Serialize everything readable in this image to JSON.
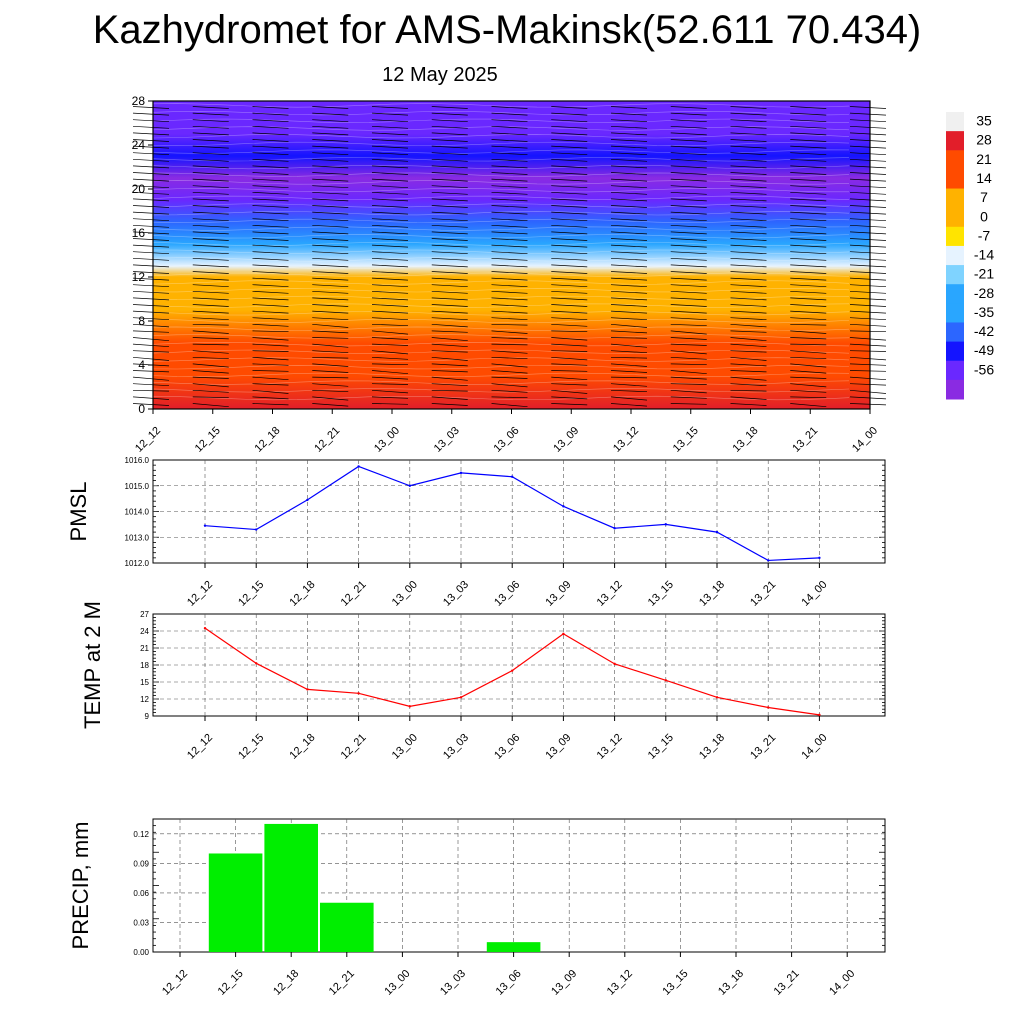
{
  "title": "Kazhydromet for AMS-Makinsk(52.611 70.434)",
  "subtitle": "12 May 2025",
  "time_labels": [
    "12_12",
    "12_15",
    "12_18",
    "12_21",
    "13_00",
    "13_03",
    "13_06",
    "13_09",
    "13_12",
    "13_15",
    "13_18",
    "13_21",
    "14_00"
  ],
  "chart_data": [
    {
      "type": "heatmap",
      "title": "",
      "ylabel": "",
      "x": [
        "12_12",
        "12_15",
        "12_18",
        "12_21",
        "13_00",
        "13_03",
        "13_06",
        "13_09",
        "13_12",
        "13_15",
        "13_18",
        "13_21",
        "14_00"
      ],
      "y_ticks": [
        0,
        4,
        8,
        12,
        16,
        20,
        24,
        28
      ],
      "ylim": [
        0,
        28
      ],
      "colorbar": {
        "labels": [
          "35",
          "28",
          "21",
          "14",
          "7",
          "0",
          "-7",
          "-14",
          "-21",
          "-28",
          "-35",
          "-42",
          "-49",
          "-56"
        ],
        "stops": [
          {
            "v": 38,
            "c": "#f0f0f0"
          },
          {
            "v": 30,
            "c": "#e21e2a"
          },
          {
            "v": 14,
            "c": "#ff4b00"
          },
          {
            "v": 3,
            "c": "#ffb200"
          },
          {
            "v": -5,
            "c": "#ffe400"
          },
          {
            "v": -12,
            "c": "#fff7b0"
          },
          {
            "v": -14,
            "c": "#e6f3ff"
          },
          {
            "v": -21,
            "c": "#7fd3ff"
          },
          {
            "v": -30,
            "c": "#29a6ff"
          },
          {
            "v": -42,
            "c": "#2c66ff"
          },
          {
            "v": -50,
            "c": "#1414ff"
          },
          {
            "v": -58,
            "c": "#6a28ff"
          },
          {
            "v": -62,
            "c": "#8a2be2"
          }
        ]
      },
      "temperature_profile": [
        {
          "level": 0,
          "temp": 24
        },
        {
          "level": 3,
          "temp": 21
        },
        {
          "level": 6,
          "temp": 14
        },
        {
          "level": 9,
          "temp": 8
        },
        {
          "level": 12,
          "temp": 1
        },
        {
          "level": 13,
          "temp": -14
        },
        {
          "level": 15,
          "temp": -30
        },
        {
          "level": 17,
          "temp": -45
        },
        {
          "level": 19,
          "temp": -56
        },
        {
          "level": 21,
          "temp": -60
        },
        {
          "level": 23,
          "temp": -52
        },
        {
          "level": 25,
          "temp": -55
        },
        {
          "level": 28,
          "temp": -58
        }
      ]
    },
    {
      "type": "line",
      "title": "",
      "ylabel": "PMSL",
      "x": [
        "12_12",
        "12_15",
        "12_18",
        "12_21",
        "13_00",
        "13_03",
        "13_06",
        "13_09",
        "13_12",
        "13_15",
        "13_18",
        "13_21",
        "14_00"
      ],
      "y_ticks": [
        "1012.0",
        "1013.0",
        "1014.0",
        "1015.0",
        "1016.0"
      ],
      "ylim": [
        1012.0,
        1016.0
      ],
      "series": [
        {
          "values": [
            1013.45,
            1013.3,
            1014.45,
            1015.75,
            1015.0,
            1015.5,
            1015.35,
            1014.2,
            1013.35,
            1013.5,
            1013.2,
            1012.1,
            1012.2
          ],
          "color": "#0000ff"
        }
      ]
    },
    {
      "type": "line",
      "title": "",
      "ylabel": "TEMP at 2 M",
      "x": [
        "12_12",
        "12_15",
        "12_18",
        "12_21",
        "13_00",
        "13_03",
        "13_06",
        "13_09",
        "13_12",
        "13_15",
        "13_18",
        "13_21",
        "14_00"
      ],
      "y_ticks": [
        "9",
        "12",
        "15",
        "18",
        "21",
        "24",
        "27"
      ],
      "ylim": [
        9,
        27
      ],
      "series": [
        {
          "values": [
            24.5,
            18.3,
            13.7,
            13.0,
            10.7,
            12.3,
            17.0,
            23.5,
            18.2,
            15.3,
            12.3,
            10.5,
            9.2
          ],
          "color": "#ff0000"
        }
      ]
    },
    {
      "type": "bar",
      "title": "",
      "ylabel": "PRECIP, mm",
      "x": [
        "12_12",
        "12_15",
        "12_18",
        "12_21",
        "13_00",
        "13_03",
        "13_06",
        "13_09",
        "13_12",
        "13_15",
        "13_18",
        "13_21",
        "14_00"
      ],
      "y_ticks": [
        "0.00",
        "0.03",
        "0.06",
        "0.09",
        "0.12"
      ],
      "ylim": [
        0,
        0.135
      ],
      "series": [
        {
          "values": [
            0,
            0.1,
            0.13,
            0.05,
            0,
            0,
            0.01,
            0,
            0,
            0,
            0,
            0,
            0
          ],
          "color": "#00ee00"
        }
      ]
    }
  ]
}
